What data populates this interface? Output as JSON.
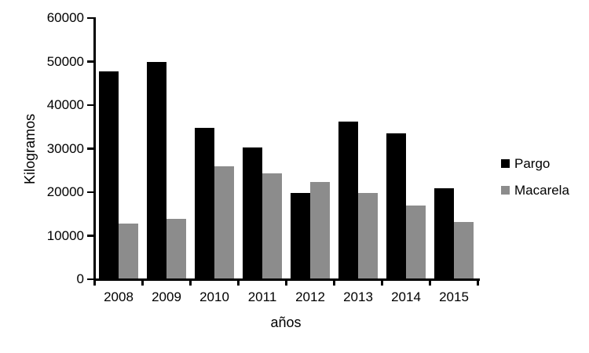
{
  "chart_data": {
    "type": "bar",
    "title": "",
    "xlabel": "años",
    "ylabel": "Kilogramos",
    "categories": [
      "2008",
      "2009",
      "2010",
      "2011",
      "2012",
      "2013",
      "2014",
      "2015"
    ],
    "series": [
      {
        "name": "Pargo",
        "color": "#000000",
        "values": [
          47800,
          50000,
          34800,
          30300,
          19900,
          36200,
          33500,
          20900
        ]
      },
      {
        "name": "Macarela",
        "color": "#8c8c8c",
        "values": [
          12800,
          13800,
          26000,
          24300,
          22400,
          19900,
          16900,
          13200
        ]
      }
    ],
    "ylim": [
      0,
      60000
    ],
    "ytick_step": 10000,
    "ytick_labels": [
      "0",
      "10000",
      "20000",
      "30000",
      "40000",
      "50000",
      "60000"
    ],
    "grid": false,
    "legend_position": "right",
    "axis_color": "#000000",
    "background_color": "#ffffff"
  }
}
